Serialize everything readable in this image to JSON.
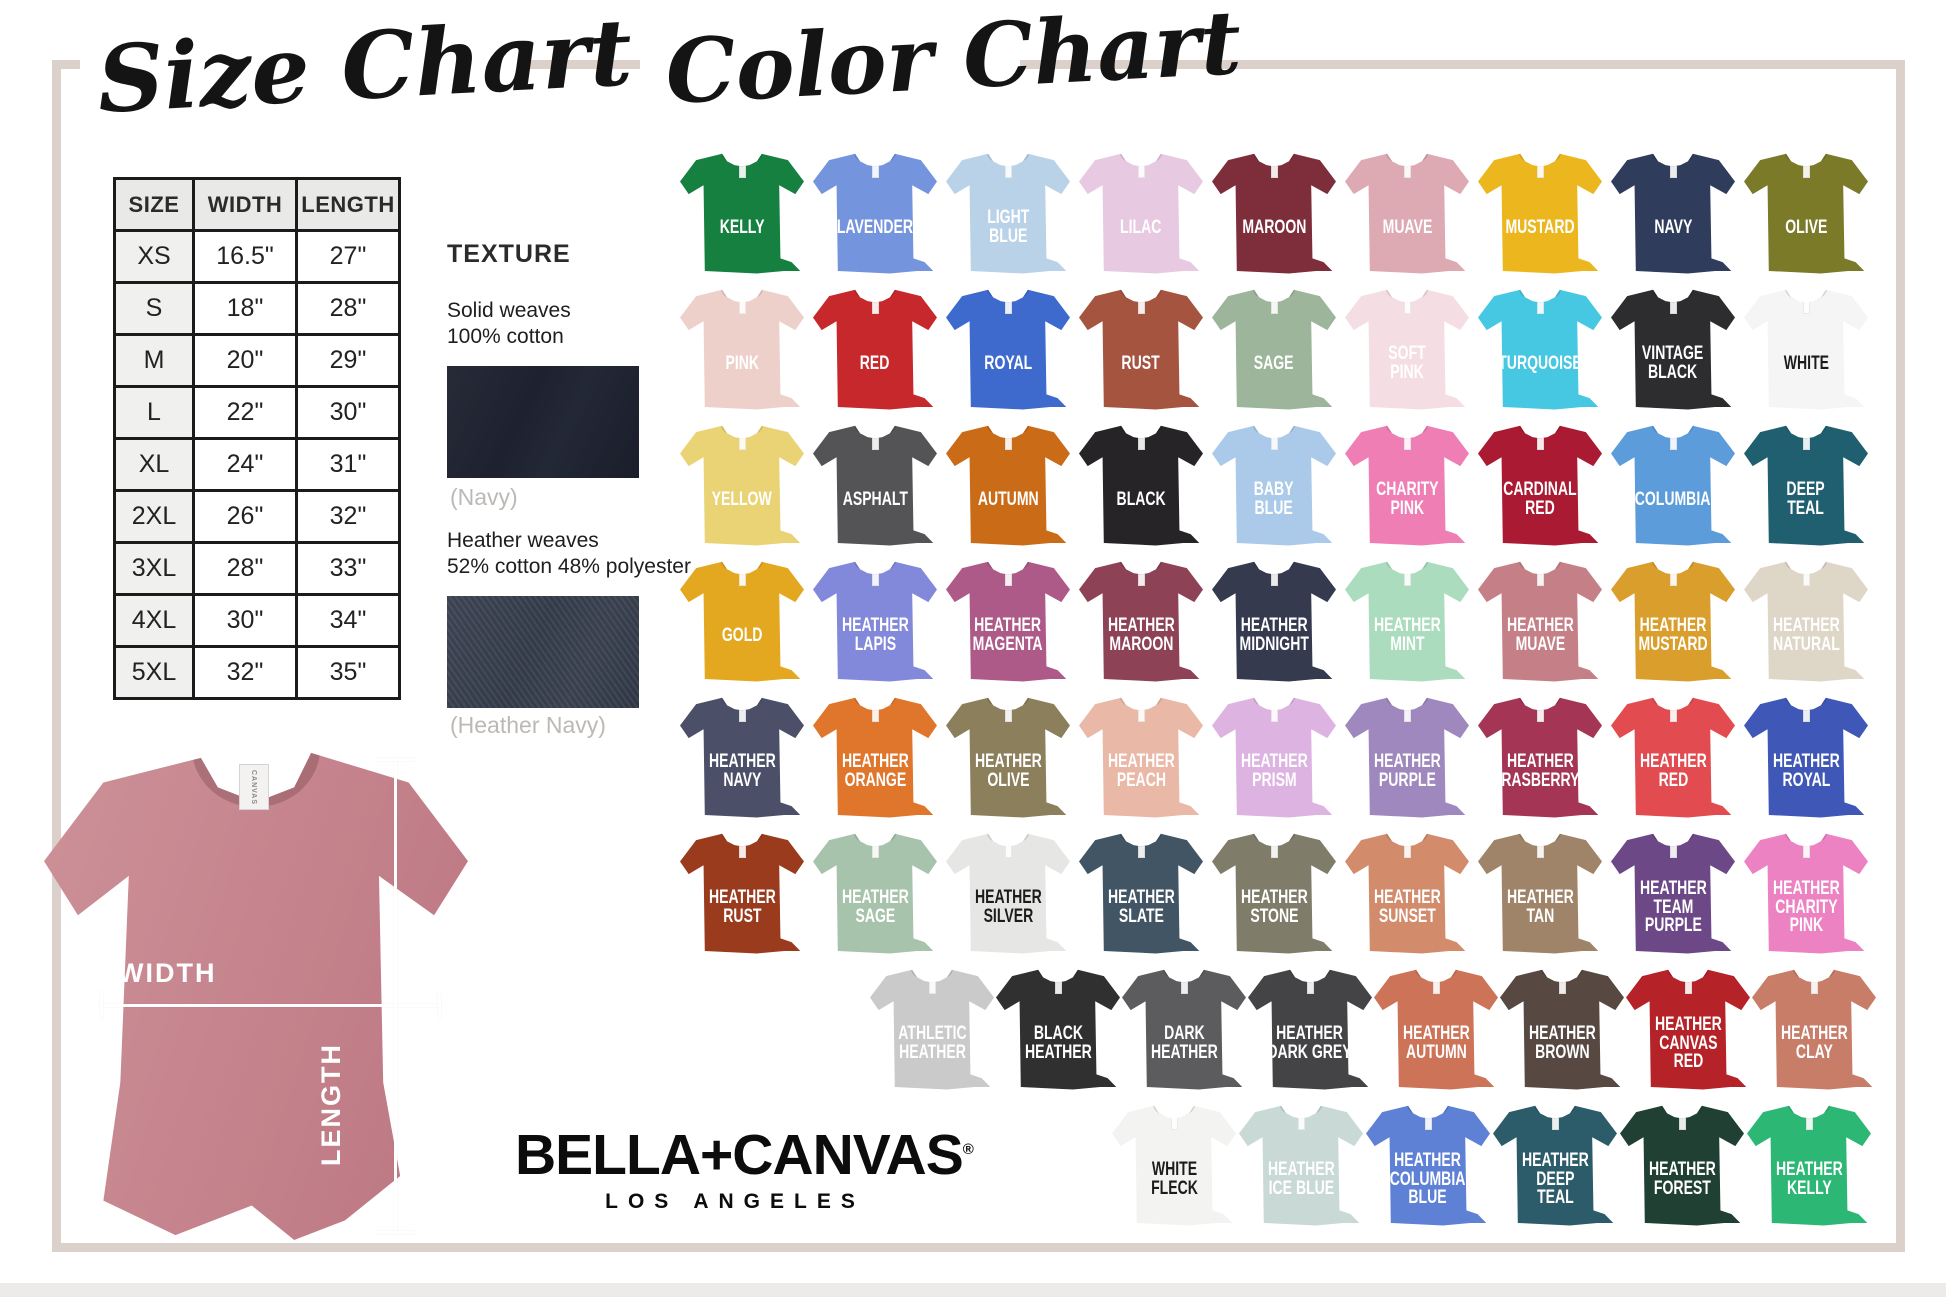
{
  "titles": {
    "size_chart": "Size Chart",
    "color_chart": "Color Chart"
  },
  "size_chart": {
    "headers": [
      "SIZE",
      "WIDTH",
      "LENGTH"
    ],
    "rows": [
      [
        "XS",
        "16.5\"",
        "27\""
      ],
      [
        "S",
        "18\"",
        "28\""
      ],
      [
        "M",
        "20\"",
        "29\""
      ],
      [
        "L",
        "22\"",
        "30\""
      ],
      [
        "XL",
        "24\"",
        "31\""
      ],
      [
        "2XL",
        "26\"",
        "32\""
      ],
      [
        "3XL",
        "28\"",
        "33\""
      ],
      [
        "4XL",
        "30\"",
        "34\""
      ],
      [
        "5XL",
        "32\"",
        "35\""
      ]
    ]
  },
  "texture": {
    "heading": "TEXTURE",
    "solid_label": "Solid weaves\n100% cotton",
    "solid_caption": "(Navy)",
    "heather_label": "Heather weaves\n52% cotton 48% polyester",
    "heather_caption": "(Heather Navy)"
  },
  "mockup": {
    "width_label": "WIDTH",
    "length_label": "LENGTH",
    "tag_text": "CANVAS",
    "shirt_color": "#c6858e"
  },
  "logo": {
    "brand": "BELLA+CANVAS",
    "reg": "®",
    "city": "LOS ANGELES"
  },
  "color_chart": {
    "rows": [
      {
        "shirts": [
          {
            "name": "KELLY",
            "color": "#15803f"
          },
          {
            "name": "LAVENDER",
            "color": "#7594de"
          },
          {
            "name": "LIGHT\nBLUE",
            "color": "#bad2e7"
          },
          {
            "name": "LILAC",
            "color": "#e8c9e2"
          },
          {
            "name": "MAROON",
            "color": "#7e2e3b"
          },
          {
            "name": "MUAVE",
            "color": "#dda9b2"
          },
          {
            "name": "MUSTARD",
            "color": "#ecb71e"
          },
          {
            "name": "NAVY",
            "color": "#2f3c5c"
          },
          {
            "name": "OLIVE",
            "color": "#7b7a28"
          }
        ]
      },
      {
        "shirts": [
          {
            "name": "PINK",
            "color": "#eed0cb"
          },
          {
            "name": "RED",
            "color": "#c6282c"
          },
          {
            "name": "ROYAL",
            "color": "#3e6ace"
          },
          {
            "name": "RUST",
            "color": "#a55440"
          },
          {
            "name": "SAGE",
            "color": "#9db59b"
          },
          {
            "name": "SOFT\nPINK",
            "color": "#f4dee3"
          },
          {
            "name": "TURQUOISE",
            "color": "#46c7e2"
          },
          {
            "name": "VINTAGE\nBLACK",
            "color": "#2d2c2e"
          },
          {
            "name": "WHITE",
            "color": "#f5f5f5",
            "text": "#1c1c1c"
          }
        ]
      },
      {
        "shirts": [
          {
            "name": "YELLOW",
            "color": "#ead375"
          },
          {
            "name": "ASPHALT",
            "color": "#545356"
          },
          {
            "name": "AUTUMN",
            "color": "#ca6c17"
          },
          {
            "name": "BLACK",
            "color": "#262427"
          },
          {
            "name": "BABY\nBLUE",
            "color": "#abcae9"
          },
          {
            "name": "CHARITY\nPINK",
            "color": "#ee7eb4"
          },
          {
            "name": "CARDINAL\nRED",
            "color": "#aa1a33"
          },
          {
            "name": "COLUMBIA",
            "color": "#5c9cda"
          },
          {
            "name": "DEEP\nTEAL",
            "color": "#1f5f6f"
          }
        ]
      },
      {
        "shirts": [
          {
            "name": "GOLD",
            "color": "#e3a81f"
          },
          {
            "name": "HEATHER\nLAPIS",
            "color": "#8389da"
          },
          {
            "name": "HEATHER\nMAGENTA",
            "color": "#ae5a89"
          },
          {
            "name": "HEATHER\nMAROON",
            "color": "#8d4256"
          },
          {
            "name": "HEATHER\nMIDNIGHT",
            "color": "#353a4f"
          },
          {
            "name": "HEATHER\nMINT",
            "color": "#abdcbe"
          },
          {
            "name": "HEATHER\nMUAVE",
            "color": "#c58087"
          },
          {
            "name": "HEATHER\nMUSTARD",
            "color": "#d99e2b"
          },
          {
            "name": "HEATHER\nNATURAL",
            "color": "#ded6c6"
          }
        ]
      },
      {
        "shirts": [
          {
            "name": "HEATHER\nNAVY",
            "color": "#4b5068"
          },
          {
            "name": "HEATHER\nORANGE",
            "color": "#e0762c"
          },
          {
            "name": "HEATHER\nOLIVE",
            "color": "#8c7f5c"
          },
          {
            "name": "HEATHER\nPEACH",
            "color": "#eab8a7"
          },
          {
            "name": "HEATHER\nPRISM",
            "color": "#ddb3e2"
          },
          {
            "name": "HEATHER\nPURPLE",
            "color": "#9e88be"
          },
          {
            "name": "HEATHER\nRASBERRY",
            "color": "#a53554"
          },
          {
            "name": "HEATHER\nRED",
            "color": "#e24c50"
          },
          {
            "name": "HEATHER\nROYAL",
            "color": "#3f57b6"
          }
        ]
      },
      {
        "shirts": [
          {
            "name": "HEATHER\nRUST",
            "color": "#9a3b1d"
          },
          {
            "name": "HEATHER\nSAGE",
            "color": "#a8c3ab"
          },
          {
            "name": "HEATHER\nSILVER",
            "color": "#e6e6e4",
            "text": "#1c1c1c"
          },
          {
            "name": "HEATHER\nSLATE",
            "color": "#415565"
          },
          {
            "name": "HEATHER\nSTONE",
            "color": "#7f7c69"
          },
          {
            "name": "HEATHER\nSUNSET",
            "color": "#d28b6b"
          },
          {
            "name": "HEATHER\nTAN",
            "color": "#9f8469"
          },
          {
            "name": "HEATHER\nTEAM\nPURPLE",
            "color": "#6d4887"
          },
          {
            "name": "HEATHER\nCHARITY\nPINK",
            "color": "#ec82c2"
          }
        ]
      },
      {
        "shirts": [
          {
            "name": "ATHLETIC\nHEATHER",
            "color": "#cacaca"
          },
          {
            "name": "BLACK\nHEATHER",
            "color": "#303030"
          },
          {
            "name": "DARK\nHEATHER",
            "color": "#5c5c5e"
          },
          {
            "name": "HEATHER\nDARK GREY",
            "color": "#444446"
          },
          {
            "name": "HEATHER\nAUTUMN",
            "color": "#cc7358"
          },
          {
            "name": "HEATHER\nBROWN",
            "color": "#574842"
          },
          {
            "name": "HEATHER\nCANVAS\nRED",
            "color": "#b52227"
          },
          {
            "name": "HEATHER\nCLAY",
            "color": "#c87d69"
          }
        ]
      },
      {
        "shirts": [
          {
            "name": "WHITE\nFLECK",
            "color": "#f3f3f1",
            "text": "#1c1c1c"
          },
          {
            "name": "HEATHER\nICE BLUE",
            "color": "#c8d9d6"
          },
          {
            "name": "HEATHER\nCOLUMBIA\nBLUE",
            "color": "#5e81d6"
          },
          {
            "name": "HEATHER\nDEEP\nTEAL",
            "color": "#2c5c6a"
          },
          {
            "name": "HEATHER\nFOREST",
            "color": "#214034"
          },
          {
            "name": "HEATHER\nKELLY",
            "color": "#2db775"
          }
        ]
      }
    ]
  }
}
